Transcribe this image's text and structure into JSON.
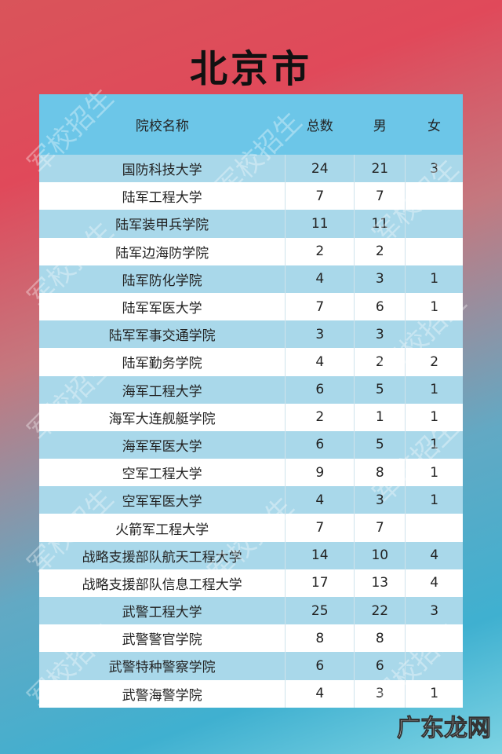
{
  "title": "北京市",
  "table": {
    "headers": [
      "院校名称",
      "总数",
      "男",
      "女"
    ],
    "rows": [
      [
        "国防科技大学",
        "24",
        "21",
        "3"
      ],
      [
        "陆军工程大学",
        "7",
        "7",
        ""
      ],
      [
        "陆军装甲兵学院",
        "11",
        "11",
        ""
      ],
      [
        "陆军边海防学院",
        "2",
        "2",
        ""
      ],
      [
        "陆军防化学院",
        "4",
        "3",
        "1"
      ],
      [
        "陆军军医大学",
        "7",
        "6",
        "1"
      ],
      [
        "陆军军事交通学院",
        "3",
        "3",
        ""
      ],
      [
        "陆军勤务学院",
        "4",
        "2",
        "2"
      ],
      [
        "海军工程大学",
        "6",
        "5",
        "1"
      ],
      [
        "海军大连舰艇学院",
        "2",
        "1",
        "1"
      ],
      [
        "海军军医大学",
        "6",
        "5",
        "1"
      ],
      [
        "空军工程大学",
        "9",
        "8",
        "1"
      ],
      [
        "空军军医大学",
        "4",
        "3",
        "1"
      ],
      [
        "火箭军工程大学",
        "7",
        "7",
        ""
      ],
      [
        "战略支援部队航天工程大学",
        "14",
        "10",
        "4"
      ],
      [
        "战略支援部队信息工程大学",
        "17",
        "13",
        "4"
      ],
      [
        "武警工程大学",
        "25",
        "22",
        "3"
      ],
      [
        "武警警官学院",
        "8",
        "8",
        ""
      ],
      [
        "武警特种警察学院",
        "6",
        "6",
        ""
      ],
      [
        "武警海警学院",
        "4",
        "3",
        "1"
      ]
    ]
  },
  "watermark": "军校招生",
  "logo": "广东龙网"
}
